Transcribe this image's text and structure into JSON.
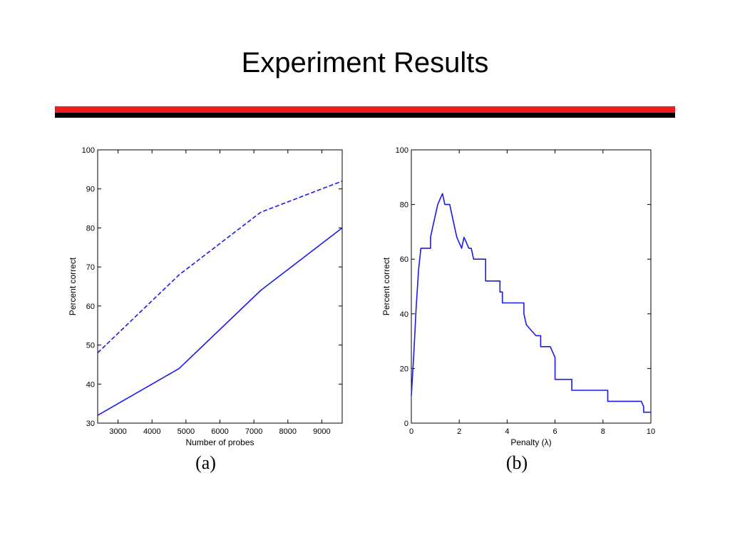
{
  "slide": {
    "title": "Experiment Results"
  },
  "colors": {
    "accent_rule": "#ee1c1c",
    "dark_rule": "#000000",
    "series": "#1a1aee"
  },
  "chart_data": [
    {
      "type": "line",
      "caption": "(a)",
      "xlabel": "Number of probes",
      "ylabel": "Percent correct",
      "xlim": [
        2400,
        9600
      ],
      "ylim": [
        30,
        100
      ],
      "xticks": [
        3000,
        4000,
        5000,
        6000,
        7000,
        8000,
        9000
      ],
      "yticks": [
        30,
        40,
        50,
        60,
        70,
        80,
        90,
        100
      ],
      "grid": false,
      "series": [
        {
          "style": "dashed",
          "x": [
            2400,
            4800,
            7200,
            9600
          ],
          "y": [
            48,
            68,
            84,
            92
          ]
        },
        {
          "style": "solid",
          "x": [
            2400,
            4800,
            7200,
            9600
          ],
          "y": [
            32,
            44,
            64,
            80
          ]
        }
      ]
    },
    {
      "type": "line",
      "caption": "(b)",
      "xlabel": "Penalty (λ)",
      "ylabel": "Percent correct",
      "xlim": [
        0,
        10
      ],
      "ylim": [
        0,
        100
      ],
      "xticks": [
        0,
        2,
        4,
        6,
        8,
        10
      ],
      "yticks": [
        0,
        20,
        40,
        60,
        80,
        100
      ],
      "grid": false,
      "series": [
        {
          "style": "solid",
          "x": [
            0.0,
            0.1,
            0.2,
            0.3,
            0.4,
            0.4,
            0.8,
            0.8,
            0.9,
            1.0,
            1.1,
            1.2,
            1.3,
            1.4,
            1.6,
            1.7,
            1.9,
            2.1,
            2.2,
            2.3,
            2.4,
            2.5,
            2.6,
            3.1,
            3.1,
            3.7,
            3.7,
            3.8,
            3.8,
            4.7,
            4.7,
            4.8,
            4.8,
            5.2,
            5.2,
            5.4,
            5.4,
            5.8,
            5.8,
            6.0,
            6.0,
            6.7,
            6.7,
            8.2,
            8.2,
            9.6,
            9.7,
            9.7,
            10.0
          ],
          "y": [
            10,
            25,
            42,
            56,
            64,
            64,
            64,
            68,
            72,
            76,
            80,
            82,
            84,
            80,
            80,
            76,
            68,
            64,
            68,
            66,
            64,
            64,
            60,
            60,
            52,
            52,
            48,
            48,
            44,
            44,
            40,
            36,
            36,
            32,
            32,
            32,
            28,
            28,
            28,
            24,
            16,
            16,
            12,
            12,
            8,
            8,
            6,
            4,
            4
          ]
        }
      ]
    }
  ]
}
